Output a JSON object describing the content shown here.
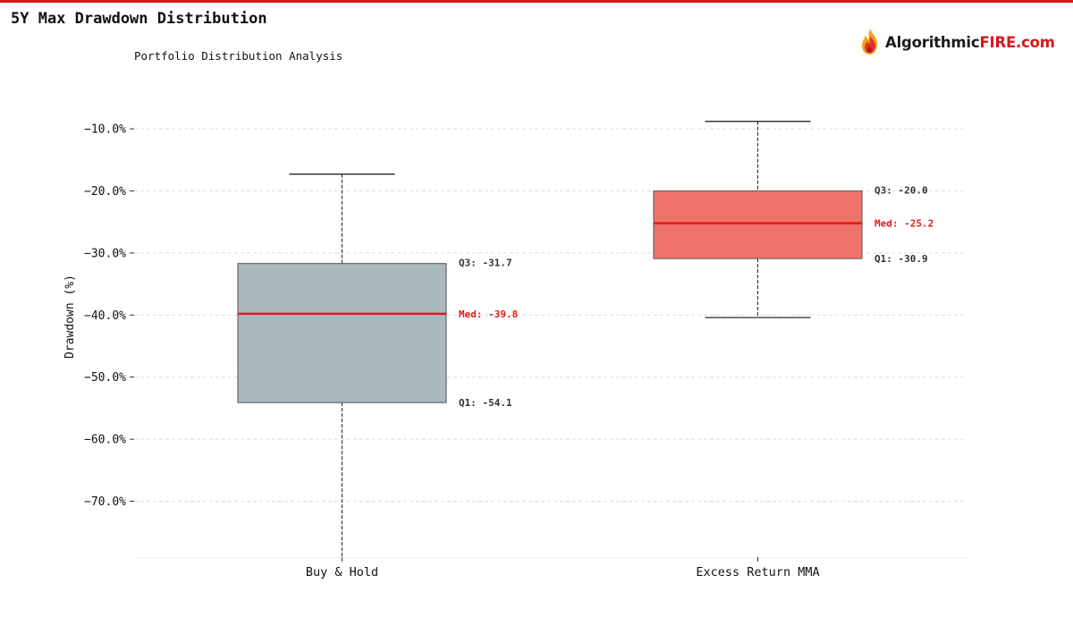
{
  "header": {
    "title": "5Y Max Drawdown Distribution",
    "subtitle": "Portfolio Distribution Analysis"
  },
  "logo": {
    "text_a": "Algorithmic",
    "text_b": "FIRE.com"
  },
  "colors": {
    "accent": "#d7191c",
    "median": "#e01b1b",
    "box_1": "#aab8bf",
    "box_2": "#ef736b",
    "grid": "#dddddd"
  },
  "chart_data": {
    "type": "boxplot",
    "title": "5Y Max Drawdown Distribution",
    "subtitle": "Portfolio Distribution Analysis",
    "ylabel": "Drawdown (%)",
    "xlabel": "",
    "ylim": [
      -79,
      -2.5
    ],
    "y_ticks": [
      -10,
      -20,
      -30,
      -40,
      -50,
      -60,
      -70
    ],
    "y_tick_labels": [
      "−10.0%",
      "−20.0%",
      "−30.0%",
      "−40.0%",
      "−50.0%",
      "−60.0%",
      "−70.0%"
    ],
    "grid": true,
    "categories": [
      "Buy & Hold",
      "Excess Return MMA"
    ],
    "boxes": [
      {
        "category": "Buy & Hold",
        "whisker_high": -17.3,
        "q3": -31.7,
        "median": -39.8,
        "q1": -54.1,
        "whisker_low": -79,
        "q3_label": "Q3: -31.7",
        "median_label": "Med: -39.8",
        "q1_label": "Q1: -54.1"
      },
      {
        "category": "Excess Return MMA",
        "whisker_high": -8.8,
        "q3": -20.0,
        "median": -25.2,
        "q1": -30.9,
        "whisker_low": -40.4,
        "q3_label": "Q3: -20.0",
        "median_label": "Med: -25.2",
        "q1_label": "Q1: -30.9"
      }
    ]
  }
}
